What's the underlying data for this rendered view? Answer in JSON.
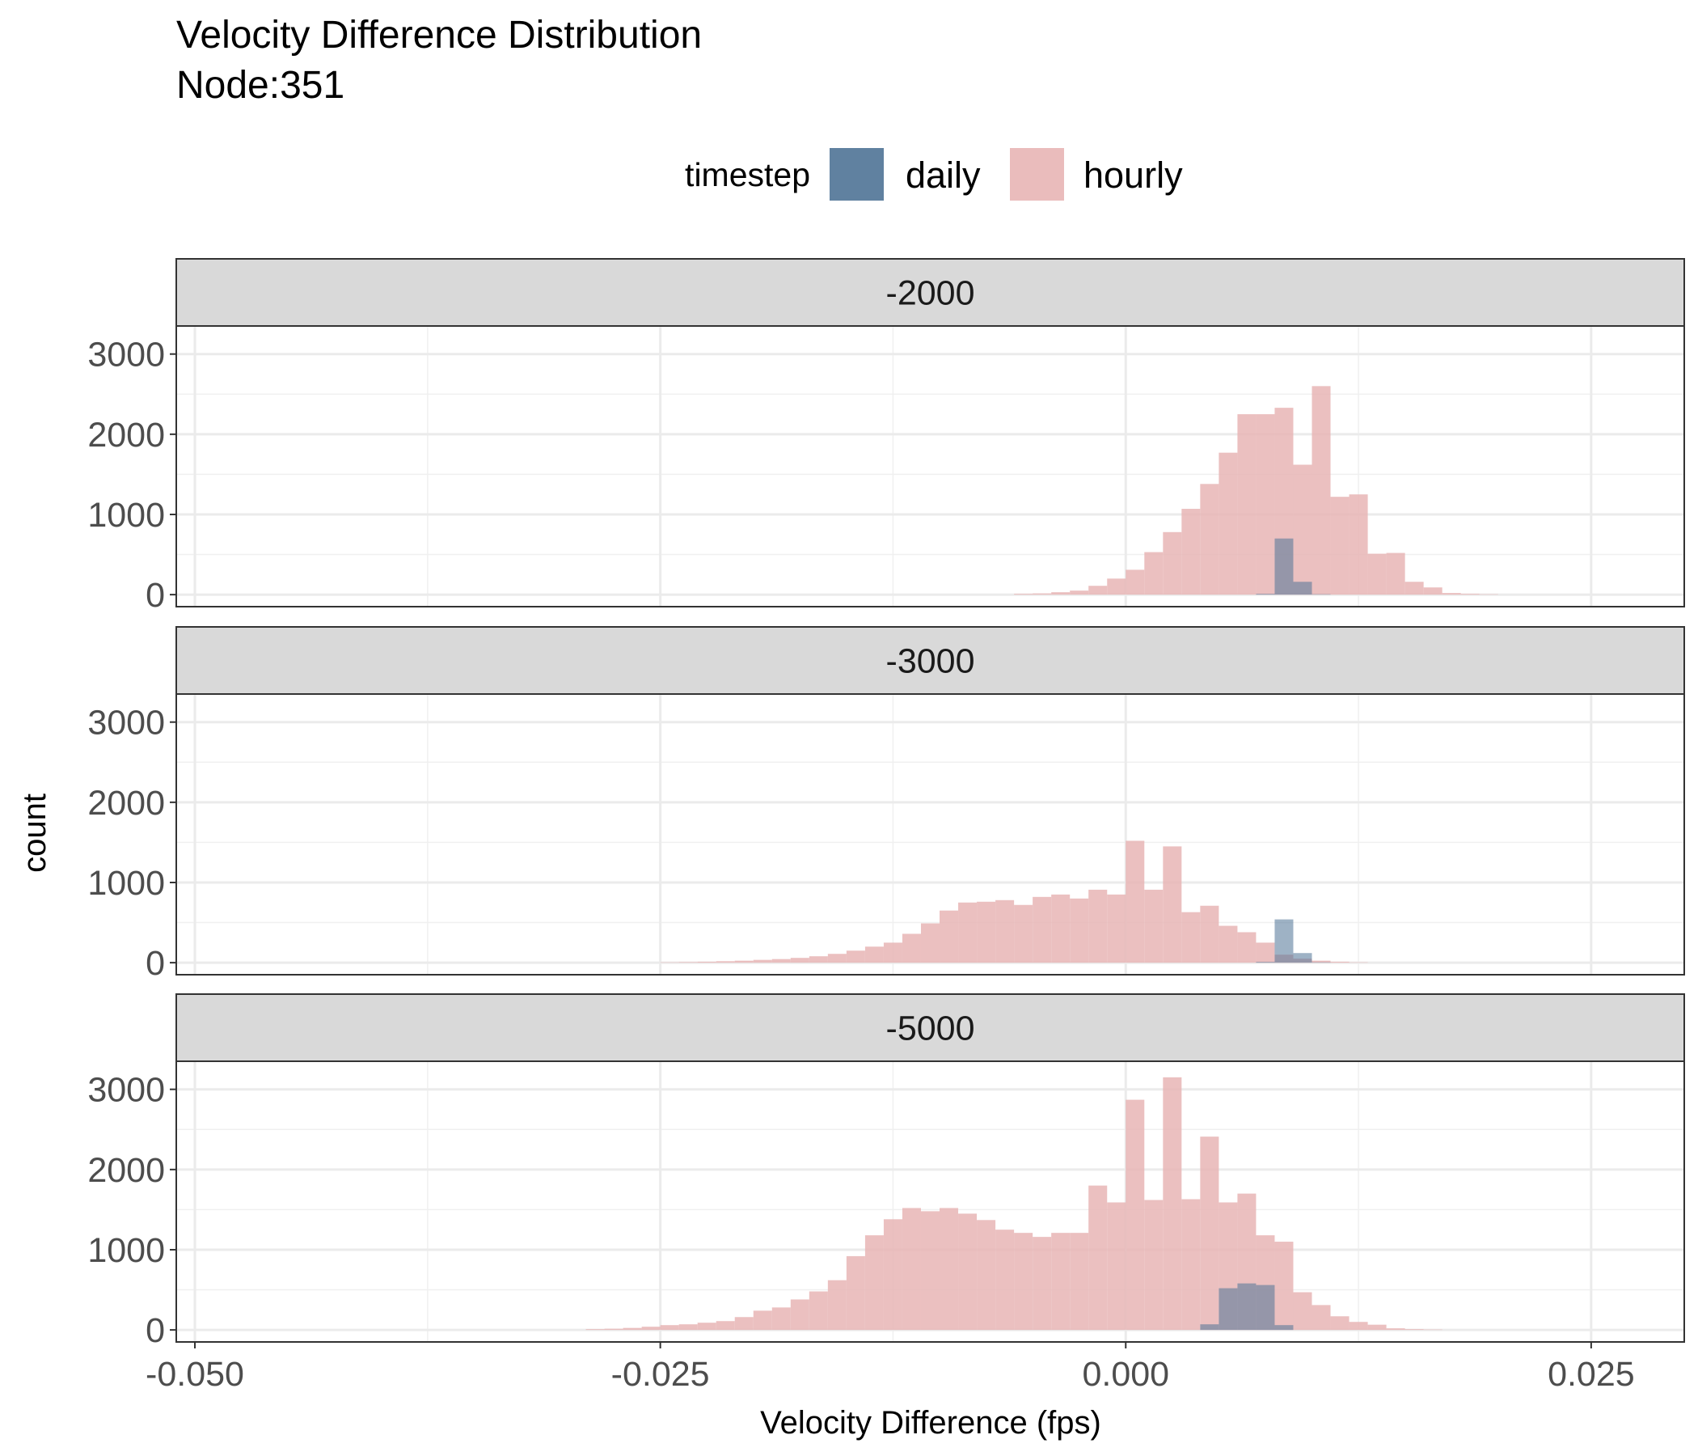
{
  "chart_data": {
    "type": "bar",
    "title": "Velocity Difference Distribution",
    "subtitle": "Node:351",
    "xlabel": "Velocity Difference (fps)",
    "ylabel": "count",
    "xlim": [
      -0.051,
      0.03
    ],
    "ylim": [
      -150,
      3350
    ],
    "x_ticks": [
      -0.05,
      -0.025,
      0.0,
      0.025
    ],
    "x_tick_labels": [
      "-0.050",
      "-0.025",
      "0.000",
      "0.025"
    ],
    "y_ticks": [
      0,
      1000,
      2000,
      3000
    ],
    "y_tick_labels": [
      "0",
      "1000",
      "2000",
      "3000"
    ],
    "grid": true,
    "legend": {
      "title": "timestep",
      "position": "top",
      "entries": [
        {
          "label": "daily",
          "color": "#4f7396"
        },
        {
          "label": "hourly",
          "color": "#e8b5b5"
        }
      ]
    },
    "bin_width": 0.001,
    "bin_start": -0.034,
    "panels": [
      {
        "label": "-2000",
        "hourly": [
          0,
          0,
          0,
          0,
          0,
          0,
          0,
          0,
          0,
          0,
          0,
          0,
          0,
          0,
          0,
          0,
          0,
          0,
          0,
          0,
          0,
          0,
          0,
          0,
          0,
          0,
          0,
          0,
          10,
          15,
          30,
          50,
          110,
          200,
          310,
          530,
          780,
          1070,
          1380,
          1770,
          2250,
          2250,
          2330,
          1620,
          2600,
          1220,
          1250,
          510,
          520,
          160,
          90,
          20,
          10,
          5,
          0,
          0,
          0,
          0,
          0,
          0
        ],
        "daily": [
          0,
          0,
          0,
          0,
          0,
          0,
          0,
          0,
          0,
          0,
          0,
          0,
          0,
          0,
          0,
          0,
          0,
          0,
          0,
          0,
          0,
          0,
          0,
          0,
          0,
          0,
          0,
          0,
          0,
          0,
          0,
          0,
          0,
          0,
          0,
          0,
          0,
          0,
          0,
          0,
          0,
          10,
          700,
          160,
          5,
          0,
          0,
          0,
          0,
          0,
          0,
          0,
          0,
          0,
          0,
          0,
          0,
          0,
          0,
          0
        ]
      },
      {
        "label": "-3000",
        "hourly": [
          0,
          0,
          0,
          0,
          0,
          0,
          0,
          0,
          0,
          5,
          8,
          12,
          18,
          25,
          35,
          45,
          60,
          80,
          110,
          150,
          200,
          250,
          360,
          490,
          650,
          750,
          760,
          780,
          720,
          820,
          850,
          800,
          910,
          850,
          1520,
          910,
          1450,
          630,
          710,
          460,
          380,
          250,
          100,
          50,
          25,
          12,
          5,
          0,
          0,
          0,
          0,
          0,
          0,
          0,
          0,
          0,
          0,
          0,
          0,
          0
        ],
        "daily": [
          0,
          0,
          0,
          0,
          0,
          0,
          0,
          0,
          0,
          0,
          0,
          0,
          0,
          0,
          0,
          0,
          0,
          0,
          0,
          0,
          0,
          0,
          0,
          0,
          0,
          0,
          0,
          0,
          0,
          0,
          0,
          0,
          0,
          0,
          0,
          0,
          0,
          0,
          0,
          0,
          0,
          10,
          540,
          120,
          5,
          0,
          0,
          0,
          0,
          0,
          0,
          0,
          0,
          0,
          0,
          0,
          0,
          0,
          0,
          0
        ]
      },
      {
        "label": "-5000",
        "hourly": [
          0,
          0,
          0,
          0,
          0,
          10,
          15,
          25,
          40,
          60,
          70,
          90,
          110,
          160,
          240,
          280,
          380,
          480,
          620,
          920,
          1180,
          1380,
          1520,
          1480,
          1520,
          1450,
          1370,
          1250,
          1210,
          1160,
          1210,
          1210,
          1800,
          1590,
          2870,
          1620,
          3150,
          1630,
          2410,
          1590,
          1700,
          1180,
          1100,
          470,
          310,
          170,
          100,
          65,
          20,
          10,
          5,
          0,
          0,
          0,
          0,
          0,
          0,
          0,
          0,
          0
        ],
        "daily": [
          0,
          0,
          0,
          0,
          0,
          0,
          0,
          0,
          0,
          0,
          0,
          0,
          0,
          0,
          0,
          0,
          0,
          0,
          0,
          0,
          0,
          0,
          0,
          0,
          0,
          0,
          0,
          0,
          0,
          0,
          0,
          0,
          0,
          0,
          0,
          0,
          0,
          0,
          70,
          520,
          580,
          560,
          60,
          0,
          0,
          0,
          0,
          0,
          0,
          0,
          0,
          0,
          0,
          0,
          0,
          0,
          0,
          0,
          0,
          0
        ]
      }
    ]
  }
}
